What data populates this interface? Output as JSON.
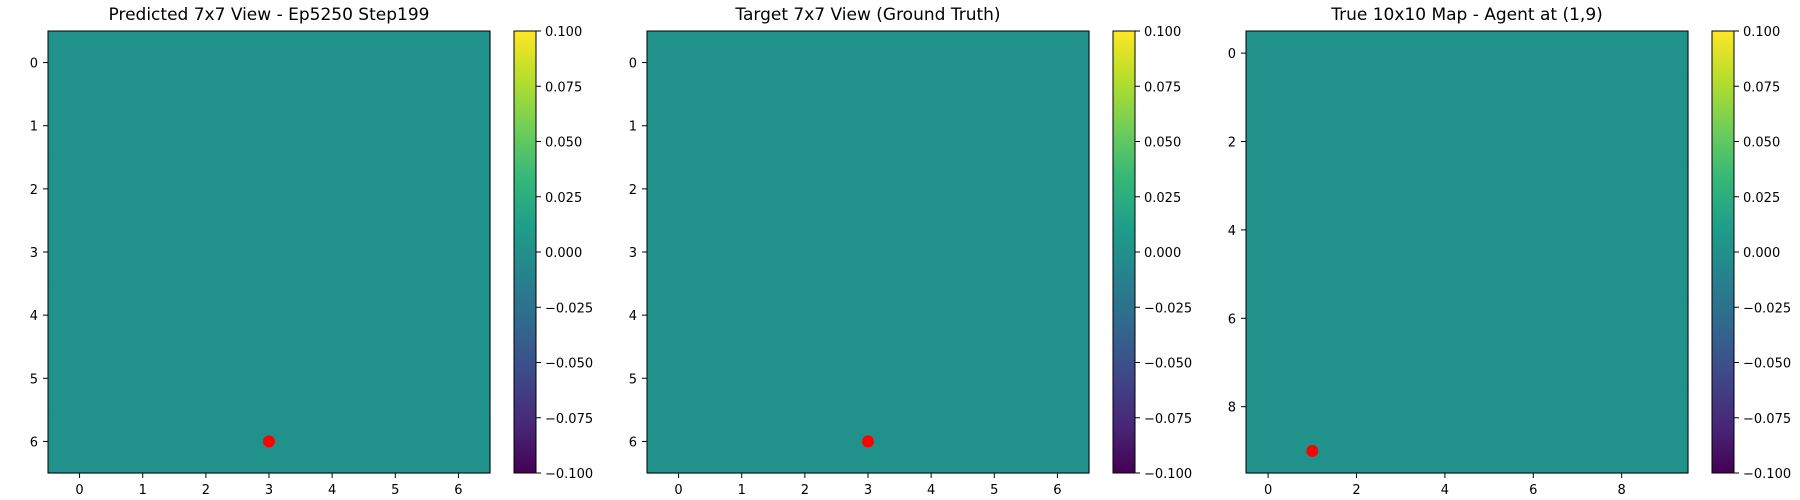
{
  "colormap": {
    "name": "viridis",
    "stops": [
      "#440154",
      "#482878",
      "#3e4989",
      "#31688e",
      "#26828e",
      "#1f9e89",
      "#35b779",
      "#6ece58",
      "#b5de2b",
      "#fde725"
    ]
  },
  "chart_data": [
    {
      "type": "heatmap",
      "title": "Predicted 7x7 View - Ep5250 Step199",
      "grid_size": [
        7,
        7
      ],
      "cell_value": 0.0,
      "cell_color": "#21918c",
      "x_ticks": [
        0,
        1,
        2,
        3,
        4,
        5,
        6
      ],
      "y_ticks": [
        0,
        1,
        2,
        3,
        4,
        5,
        6
      ],
      "xlim": [
        -0.5,
        6.5
      ],
      "ylim": [
        6.5,
        -0.5
      ],
      "agent_marker": {
        "x": 3,
        "y": 6,
        "color": "#ff0000"
      },
      "colorbar": {
        "min": -0.1,
        "max": 0.1,
        "ticks": [
          "0.100",
          "0.075",
          "0.050",
          "0.025",
          "0.000",
          "−0.025",
          "−0.050",
          "−0.075",
          "−0.100"
        ]
      }
    },
    {
      "type": "heatmap",
      "title": "Target 7x7 View (Ground Truth)",
      "grid_size": [
        7,
        7
      ],
      "cell_value": 0.0,
      "cell_color": "#21918c",
      "x_ticks": [
        0,
        1,
        2,
        3,
        4,
        5,
        6
      ],
      "y_ticks": [
        0,
        1,
        2,
        3,
        4,
        5,
        6
      ],
      "xlim": [
        -0.5,
        6.5
      ],
      "ylim": [
        6.5,
        -0.5
      ],
      "agent_marker": {
        "x": 3,
        "y": 6,
        "color": "#ff0000"
      },
      "colorbar": {
        "min": -0.1,
        "max": 0.1,
        "ticks": [
          "0.100",
          "0.075",
          "0.050",
          "0.025",
          "0.000",
          "−0.025",
          "−0.050",
          "−0.075",
          "−0.100"
        ]
      }
    },
    {
      "type": "heatmap",
      "title": "True 10x10 Map - Agent at (1,9)",
      "grid_size": [
        10,
        10
      ],
      "cell_value": 0.0,
      "cell_color": "#21918c",
      "x_ticks": [
        0,
        2,
        4,
        6,
        8
      ],
      "y_ticks": [
        0,
        2,
        4,
        6,
        8
      ],
      "xlim": [
        -0.5,
        9.5
      ],
      "ylim": [
        9.5,
        -0.5
      ],
      "agent_marker": {
        "x": 1,
        "y": 9,
        "color": "#ff0000"
      },
      "colorbar": {
        "min": -0.1,
        "max": 0.1,
        "ticks": [
          "0.100",
          "0.075",
          "0.050",
          "0.025",
          "0.000",
          "−0.025",
          "−0.050",
          "−0.075",
          "−0.100"
        ]
      }
    }
  ]
}
